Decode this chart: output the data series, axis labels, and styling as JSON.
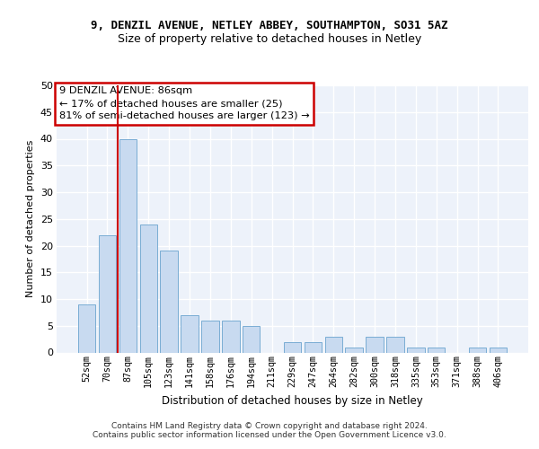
{
  "title1": "9, DENZIL AVENUE, NETLEY ABBEY, SOUTHAMPTON, SO31 5AZ",
  "title2": "Size of property relative to detached houses in Netley",
  "xlabel": "Distribution of detached houses by size in Netley",
  "ylabel": "Number of detached properties",
  "categories": [
    "52sqm",
    "70sqm",
    "87sqm",
    "105sqm",
    "123sqm",
    "141sqm",
    "158sqm",
    "176sqm",
    "194sqm",
    "211sqm",
    "229sqm",
    "247sqm",
    "264sqm",
    "282sqm",
    "300sqm",
    "318sqm",
    "335sqm",
    "353sqm",
    "371sqm",
    "388sqm",
    "406sqm"
  ],
  "values": [
    9,
    22,
    40,
    24,
    19,
    7,
    6,
    6,
    5,
    0,
    2,
    2,
    3,
    1,
    3,
    3,
    1,
    1,
    0,
    1,
    1
  ],
  "bar_color": "#c8daf0",
  "bar_edge_color": "#7aadd4",
  "vline_index": 2,
  "vline_color": "#cc0000",
  "annotation_line1": "9 DENZIL AVENUE: 86sqm",
  "annotation_line2": "← 17% of detached houses are smaller (25)",
  "annotation_line3": "81% of semi-detached houses are larger (123) →",
  "annotation_box_edgecolor": "#cc0000",
  "background_color": "#edf2fa",
  "grid_color": "#ffffff",
  "footer_text": "Contains HM Land Registry data © Crown copyright and database right 2024.\nContains public sector information licensed under the Open Government Licence v3.0.",
  "ylim": [
    0,
    50
  ],
  "yticks": [
    0,
    5,
    10,
    15,
    20,
    25,
    30,
    35,
    40,
    45,
    50
  ]
}
